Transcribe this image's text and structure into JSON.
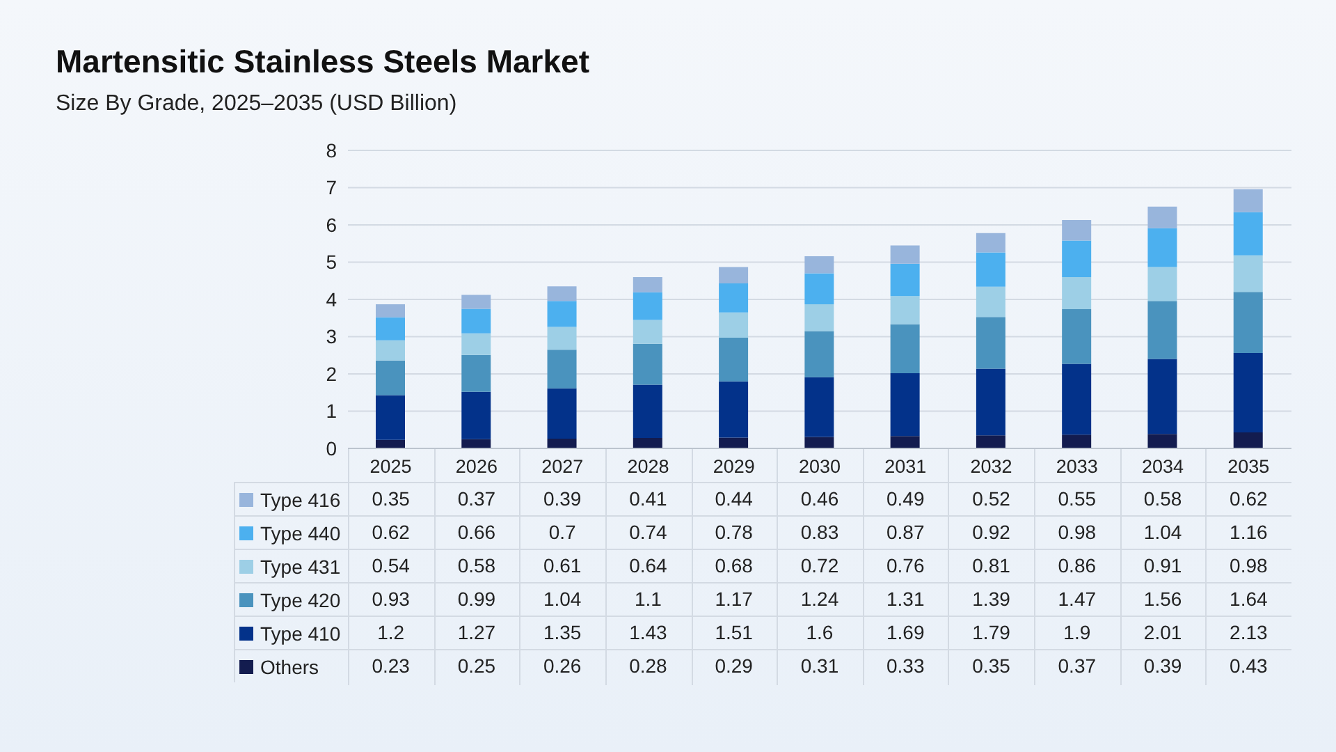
{
  "chart_data": {
    "type": "bar",
    "title": "Martensitic Stainless Steels Market",
    "subtitle": "Size By Grade, 2025–2035 (USD Billion)",
    "categories": [
      "2025",
      "2026",
      "2027",
      "2028",
      "2029",
      "2030",
      "2031",
      "2032",
      "2033",
      "2034",
      "2035"
    ],
    "series": [
      {
        "name": "Others",
        "color": "#131c4f",
        "values": [
          0.23,
          0.25,
          0.26,
          0.28,
          0.29,
          0.31,
          0.33,
          0.35,
          0.37,
          0.39,
          0.43
        ]
      },
      {
        "name": "Type 410",
        "color": "#03328a",
        "values": [
          1.2,
          1.27,
          1.35,
          1.43,
          1.51,
          1.6,
          1.69,
          1.79,
          1.9,
          2.01,
          2.13
        ]
      },
      {
        "name": "Type 420",
        "color": "#4a93be",
        "values": [
          0.93,
          0.99,
          1.04,
          1.1,
          1.17,
          1.24,
          1.31,
          1.39,
          1.47,
          1.56,
          1.64
        ]
      },
      {
        "name": "Type 431",
        "color": "#9dcfe6",
        "values": [
          0.54,
          0.58,
          0.61,
          0.64,
          0.68,
          0.72,
          0.76,
          0.81,
          0.86,
          0.91,
          0.98
        ]
      },
      {
        "name": "Type 440",
        "color": "#4cb0ef",
        "values": [
          0.62,
          0.66,
          0.7,
          0.74,
          0.78,
          0.83,
          0.87,
          0.92,
          0.98,
          1.04,
          1.16
        ]
      },
      {
        "name": "Type 416",
        "color": "#98b5dc",
        "values": [
          0.35,
          0.37,
          0.39,
          0.41,
          0.44,
          0.46,
          0.49,
          0.52,
          0.55,
          0.58,
          0.62
        ]
      }
    ],
    "stacked": true,
    "ylim": [
      0,
      8
    ],
    "yticks": [
      0,
      1,
      2,
      3,
      4,
      5,
      6,
      7,
      8
    ],
    "grid": "y",
    "legend": "bottom",
    "data_labels": true
  }
}
